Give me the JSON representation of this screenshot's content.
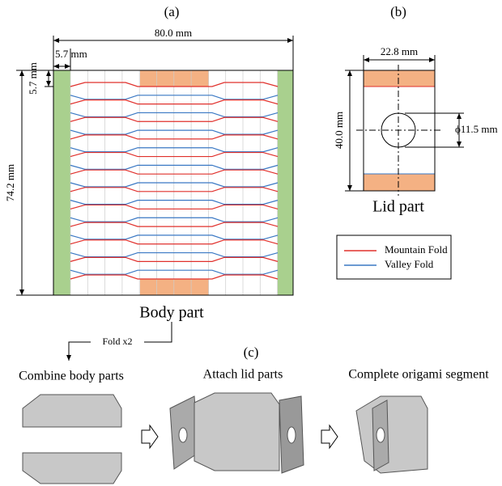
{
  "panels": {
    "a": {
      "label": "(a)",
      "width": "80.0 mm",
      "strip": "5.7 mm",
      "band": "5.7 mm",
      "height": "74.2 mm",
      "caption": "Body part"
    },
    "b": {
      "label": "(b)",
      "width": "22.8 mm",
      "height": "40.0 mm",
      "hole": "ϕ11.5 mm",
      "caption": "Lid part"
    },
    "legend": {
      "items": [
        {
          "name": "Mountain Fold",
          "color": "#e0302c"
        },
        {
          "name": "Valley Fold",
          "color": "#3a78c4"
        }
      ]
    },
    "fold": "Fold x2",
    "c": {
      "label": "(c)",
      "steps": [
        "Combine body parts",
        "Attach lid parts",
        "Complete origami segment"
      ]
    }
  }
}
